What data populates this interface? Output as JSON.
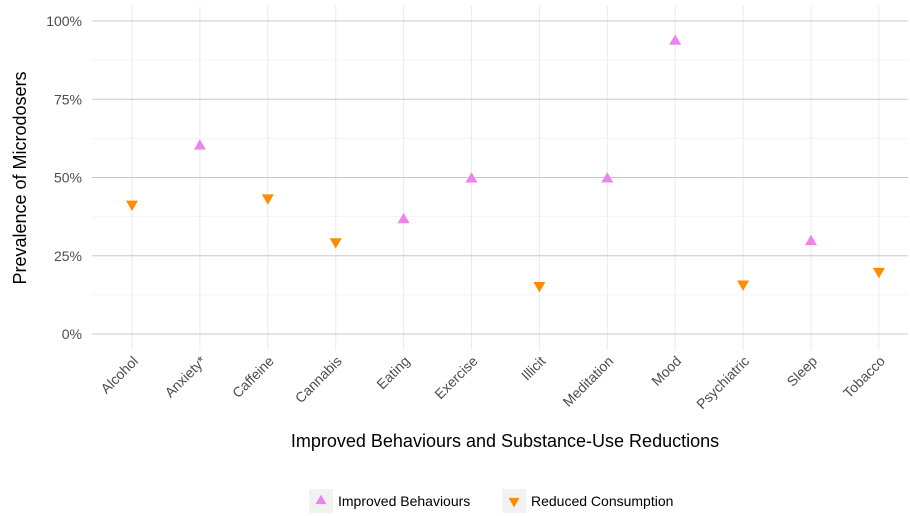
{
  "chart_data": {
    "type": "scatter",
    "xlabel": "Improved Behaviours and Substance-Use Reductions",
    "ylabel": "Prevalence of Microdosers",
    "categories": [
      "Alcohol",
      "Anxiety*",
      "Caffeine",
      "Cannabis",
      "Eating",
      "Exercise",
      "Illicit",
      "Meditation",
      "Mood",
      "Psychiatric",
      "Sleep",
      "Tobacco"
    ],
    "ylim": [
      0,
      100
    ],
    "yticks": [
      0,
      25,
      50,
      75,
      100
    ],
    "ytick_labels": [
      "0%",
      "25%",
      "50%",
      "75%",
      "100%"
    ],
    "grid": true,
    "legend_position": "bottom",
    "series": [
      {
        "name": "Improved Behaviours",
        "marker": "triangle-up",
        "color": "#ee82ee",
        "points": [
          {
            "x": "Anxiety*",
            "y": 60
          },
          {
            "x": "Eating",
            "y": 36.5
          },
          {
            "x": "Exercise",
            "y": 49.5
          },
          {
            "x": "Meditation",
            "y": 49.5
          },
          {
            "x": "Mood",
            "y": 93.5
          },
          {
            "x": "Sleep",
            "y": 29.5
          }
        ]
      },
      {
        "name": "Reduced Consumption",
        "marker": "triangle-down",
        "color": "#ff8c00",
        "points": [
          {
            "x": "Alcohol",
            "y": 41.5
          },
          {
            "x": "Caffeine",
            "y": 43.5
          },
          {
            "x": "Cannabis",
            "y": 29.5
          },
          {
            "x": "Illicit",
            "y": 15.5
          },
          {
            "x": "Psychiatric",
            "y": 16
          },
          {
            "x": "Tobacco",
            "y": 20
          }
        ]
      }
    ]
  }
}
